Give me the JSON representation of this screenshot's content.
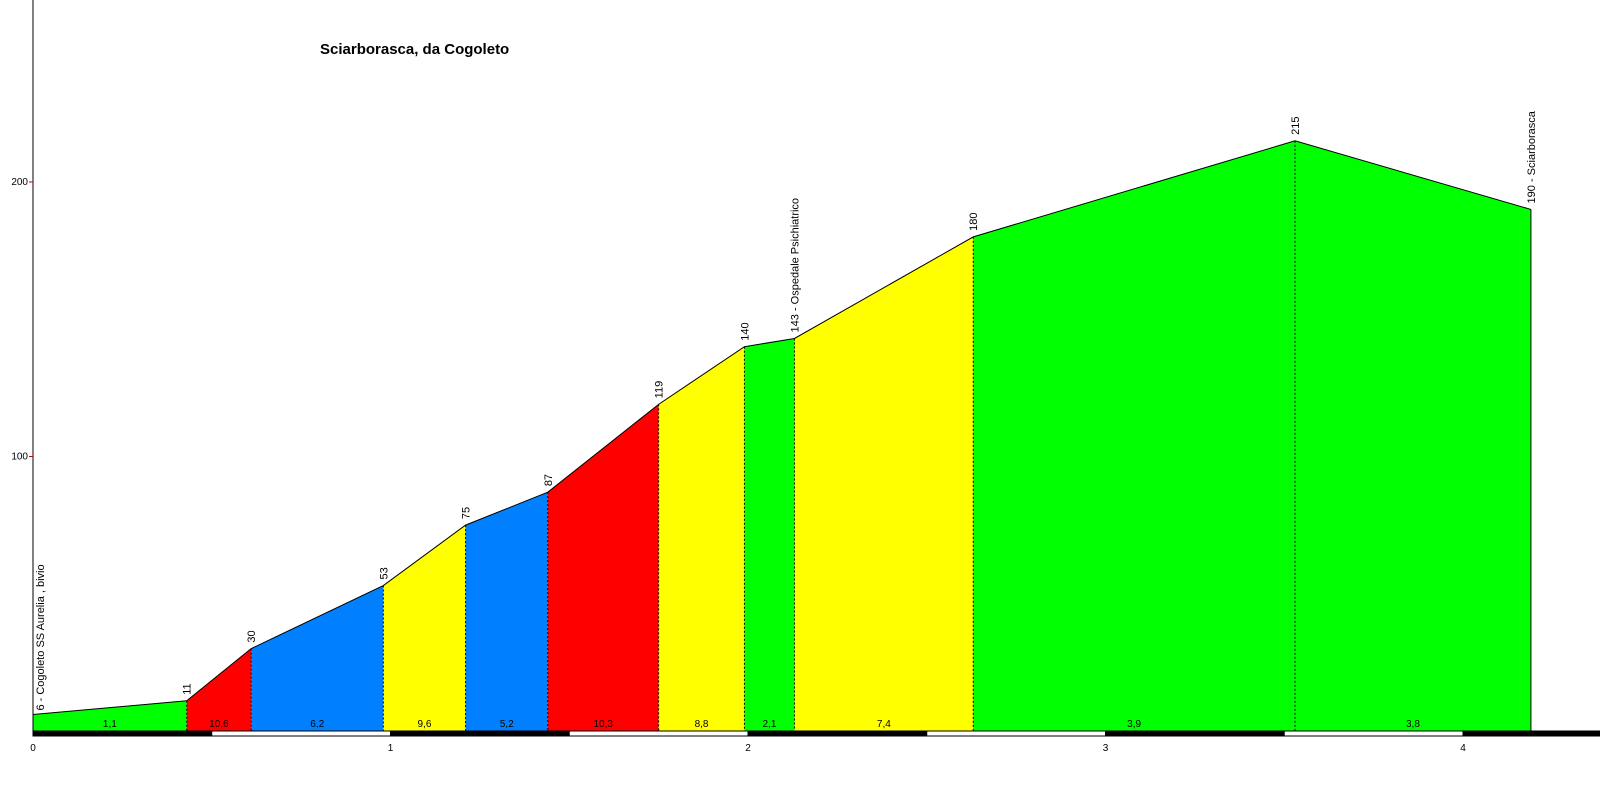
{
  "chart_data": {
    "type": "area",
    "title": "Sciarborasca, da Cogoleto",
    "xlim": [
      0,
      4.45
    ],
    "ylim": [
      0,
      265
    ],
    "x_ticks": [
      {
        "value": 0,
        "label": "0"
      },
      {
        "value": 1,
        "label": "1"
      },
      {
        "value": 2,
        "label": "2"
      },
      {
        "value": 3,
        "label": "3"
      },
      {
        "value": 4,
        "label": "4"
      }
    ],
    "y_ticks": [
      {
        "value": 100,
        "label": "100"
      },
      {
        "value": 200,
        "label": "200"
      }
    ],
    "points": [
      {
        "x": 0.0,
        "y": 6,
        "label": "6 - Cogoleto  SS Aurelia , bivio"
      },
      {
        "x": 0.43,
        "y": 11,
        "label": "11"
      },
      {
        "x": 0.61,
        "y": 30,
        "label": "30"
      },
      {
        "x": 0.98,
        "y": 53,
        "label": "53"
      },
      {
        "x": 1.21,
        "y": 75,
        "label": "75"
      },
      {
        "x": 1.44,
        "y": 87,
        "label": "87"
      },
      {
        "x": 1.75,
        "y": 119,
        "label": "119"
      },
      {
        "x": 1.99,
        "y": 140,
        "label": "140"
      },
      {
        "x": 2.13,
        "y": 143,
        "label": "143 - Ospedale Psichiatrico"
      },
      {
        "x": 2.63,
        "y": 180,
        "label": "180"
      },
      {
        "x": 3.53,
        "y": 215,
        "label": "215"
      },
      {
        "x": 4.19,
        "y": 190,
        "label": "190 - Sciarborasca"
      }
    ],
    "segments": [
      {
        "gradient": "1,1",
        "color": "#00ff00"
      },
      {
        "gradient": "10,6",
        "color": "#ff0000"
      },
      {
        "gradient": "6,2",
        "color": "#0080ff"
      },
      {
        "gradient": "9,6",
        "color": "#ffff00"
      },
      {
        "gradient": "5,2",
        "color": "#0080ff"
      },
      {
        "gradient": "10,3",
        "color": "#ff0000"
      },
      {
        "gradient": "8,8",
        "color": "#ffff00"
      },
      {
        "gradient": "2,1",
        "color": "#00ff00"
      },
      {
        "gradient": "7,4",
        "color": "#ffff00"
      },
      {
        "gradient": "3,9",
        "color": "#00ff00"
      },
      {
        "gradient": "3,8",
        "color": "#00ff00"
      }
    ],
    "grid": false,
    "legend": "none"
  }
}
